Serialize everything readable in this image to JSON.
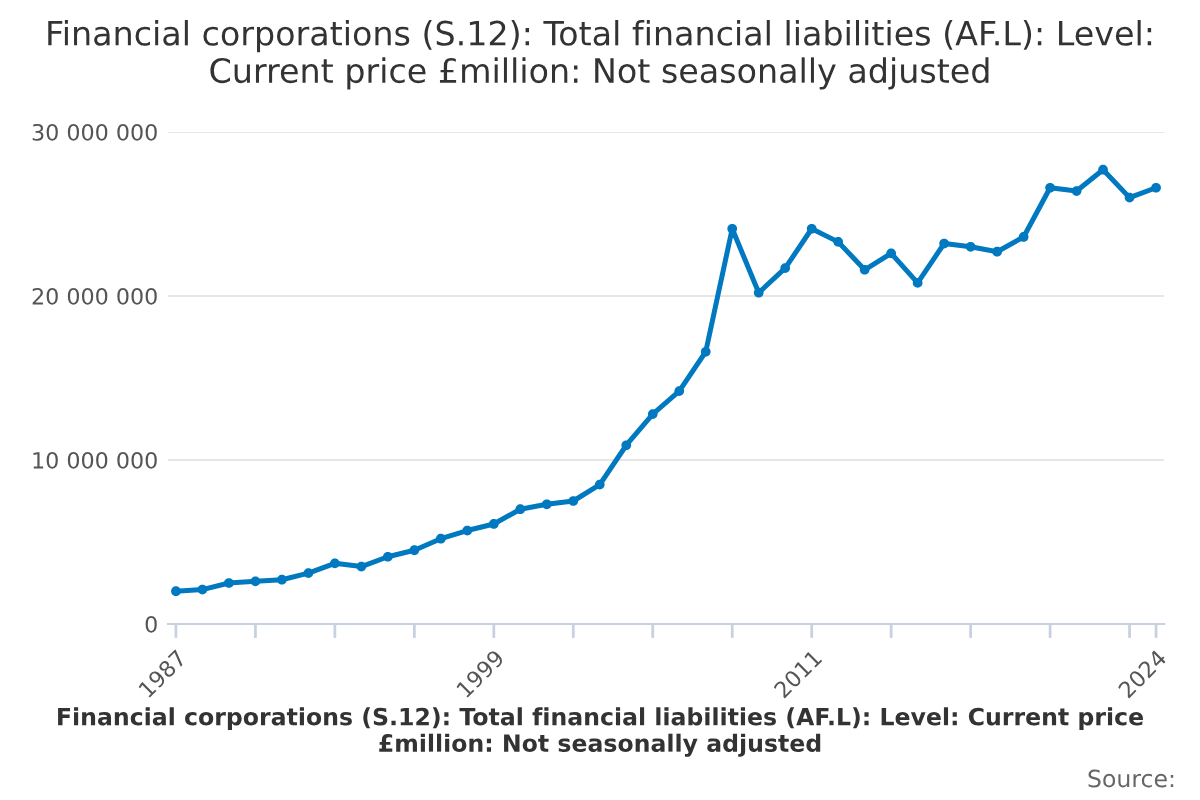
{
  "chart_data": {
    "type": "line",
    "title": "Financial corporations (S.12): Total financial liabilities (AF.L): Level: Current price £million: Not seasonally adjusted",
    "x": [
      1987,
      1988,
      1989,
      1990,
      1991,
      1992,
      1993,
      1994,
      1995,
      1996,
      1997,
      1998,
      1999,
      2000,
      2001,
      2002,
      2003,
      2004,
      2005,
      2006,
      2007,
      2008,
      2009,
      2010,
      2011,
      2012,
      2013,
      2014,
      2015,
      2016,
      2017,
      2018,
      2019,
      2020,
      2021,
      2022,
      2023,
      2024
    ],
    "series": [
      {
        "name": "Financial corporations (S.12): Total financial liabilities (AF.L): Level: Current price £million: Not seasonally adjusted",
        "color": "#0079c1",
        "values": [
          2000000,
          2100000,
          2500000,
          2600000,
          2700000,
          3100000,
          3700000,
          3500000,
          4100000,
          4500000,
          5200000,
          5700000,
          6100000,
          7000000,
          7300000,
          7500000,
          8500000,
          10900000,
          12800000,
          14200000,
          16600000,
          24100000,
          20200000,
          21700000,
          24100000,
          23300000,
          21600000,
          22600000,
          20800000,
          23200000,
          23000000,
          22700000,
          23600000,
          26600000,
          26400000,
          27700000,
          26000000,
          26600000
        ]
      }
    ],
    "xlim": [
      1986.7,
      2024.3
    ],
    "xticks": [
      1987,
      {
        "value": 1990,
        "label": null
      },
      {
        "value": 1993,
        "label": null
      },
      {
        "value": 1996,
        "label": null
      },
      1999,
      {
        "value": 2002,
        "label": null
      },
      {
        "value": 2005,
        "label": null
      },
      {
        "value": 2008,
        "label": null
      },
      2011,
      {
        "value": 2014,
        "label": null
      },
      {
        "value": 2017,
        "label": null
      },
      {
        "value": 2020,
        "label": null
      },
      {
        "value": 2023,
        "label": null
      },
      2024
    ],
    "ylim": [
      0,
      30000000
    ],
    "yticks": [
      0,
      {
        "value": 10000000,
        "label": "10 000 000"
      },
      {
        "value": 20000000,
        "label": "20 000 000"
      },
      {
        "value": 30000000,
        "label": "30 000 000"
      }
    ],
    "grid": "y",
    "legend": "bottom",
    "marker": "circle",
    "line_style": "solid",
    "annotations": [
      "Source:"
    ]
  }
}
